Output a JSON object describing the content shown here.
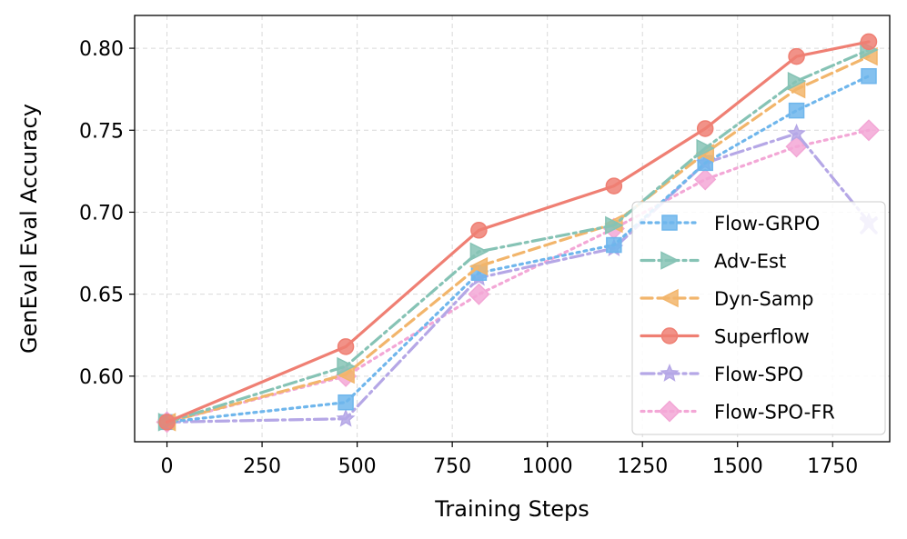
{
  "chart_data": {
    "type": "line",
    "title": "",
    "xlabel": "Training Steps",
    "ylabel": "GenEval Eval Accuracy",
    "xlim": [
      -85,
      1900
    ],
    "ylim": [
      0.56,
      0.82
    ],
    "xticks": [
      0,
      250,
      500,
      750,
      1000,
      1250,
      1500,
      1750
    ],
    "yticks": [
      0.6,
      0.65,
      0.7,
      0.75,
      0.8
    ],
    "ytick_labels": [
      "0.60",
      "0.65",
      "0.70",
      "0.75",
      "0.80"
    ],
    "grid": true,
    "legend_position": "lower-right",
    "series": [
      {
        "name": "Flow-GRPO",
        "color": "#6fb6ec",
        "dash": "dotted",
        "marker": "square",
        "x": [
          0,
          470,
          820,
          1175,
          1415,
          1655,
          1845
        ],
        "y": [
          0.572,
          0.584,
          0.663,
          0.68,
          0.73,
          0.762,
          0.783
        ]
      },
      {
        "name": "Adv-Est",
        "color": "#86c3b5",
        "dash": "dashdot",
        "marker": "triangle-right",
        "x": [
          0,
          470,
          820,
          1175,
          1415,
          1655,
          1845
        ],
        "y": [
          0.572,
          0.606,
          0.676,
          0.692,
          0.739,
          0.78,
          0.799
        ]
      },
      {
        "name": "Dyn-Samp",
        "color": "#f2b56b",
        "dash": "dashed",
        "marker": "triangle-left",
        "x": [
          0,
          470,
          820,
          1175,
          1415,
          1655,
          1845
        ],
        "y": [
          0.572,
          0.601,
          0.667,
          0.693,
          0.736,
          0.775,
          0.795
        ]
      },
      {
        "name": "Superflow",
        "color": "#ef7f73",
        "dash": "solid",
        "marker": "circle",
        "x": [
          0,
          470,
          820,
          1175,
          1415,
          1655,
          1845
        ],
        "y": [
          0.572,
          0.618,
          0.689,
          0.716,
          0.751,
          0.795,
          0.804
        ]
      },
      {
        "name": "Flow-SPO",
        "color": "#b5a7e6",
        "dash": "dashdot",
        "marker": "star",
        "x": [
          0,
          470,
          820,
          1175,
          1415,
          1655,
          1845
        ],
        "y": [
          0.572,
          0.574,
          0.66,
          0.678,
          0.73,
          0.748,
          0.694
        ]
      },
      {
        "name": "Flow-SPO-FR",
        "color": "#f3a7d6",
        "dash": "dotted",
        "marker": "diamond",
        "x": [
          0,
          470,
          820,
          1175,
          1415,
          1655,
          1845
        ],
        "y": [
          0.572,
          0.6,
          0.65,
          0.69,
          0.72,
          0.74,
          0.75
        ]
      }
    ],
    "extra_markers": [
      {
        "series": "Flow-SPO",
        "marker": "x",
        "x": 1845,
        "y": 0.692
      }
    ]
  }
}
